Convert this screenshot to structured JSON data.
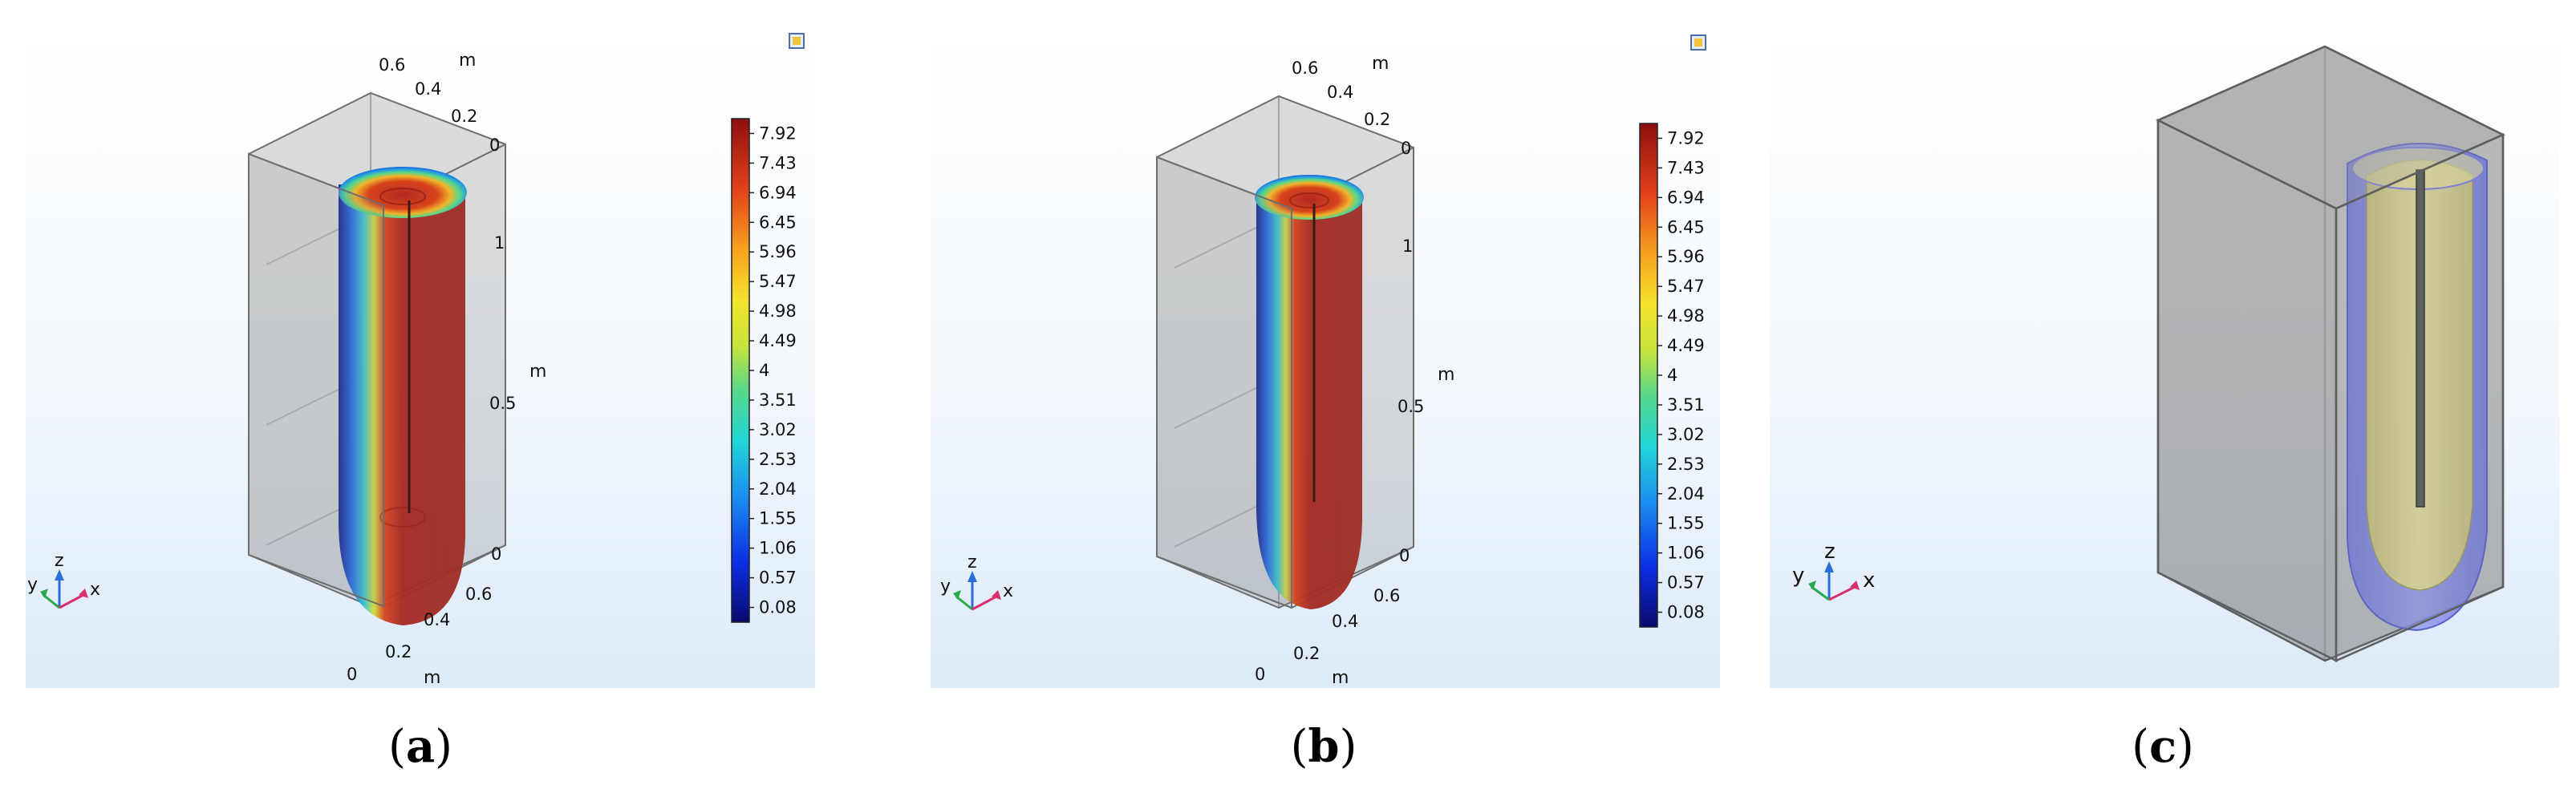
{
  "panels": [
    {
      "id": "a",
      "caption_label": "a",
      "axis_ticks": {
        "top_y": [
          "0.6",
          "0.4",
          "0.2",
          "0"
        ],
        "top_unit": "m",
        "z": [
          "1",
          "0.5",
          "0"
        ],
        "z_unit": "m",
        "bottom_right": [
          "0.4",
          "0.6"
        ],
        "bottom_x": [
          "0",
          "0.2"
        ],
        "bottom_unit": "m"
      },
      "colorbar_ticks": [
        "7.92",
        "7.43",
        "6.94",
        "6.45",
        "5.96",
        "5.47",
        "4.98",
        "4.49",
        "4",
        "3.51",
        "3.02",
        "2.53",
        "2.04",
        "1.55",
        "1.06",
        "0.57",
        "0.08"
      ],
      "triad": {
        "z": "z",
        "y": "y",
        "x": "x"
      }
    },
    {
      "id": "b",
      "caption_label": "b",
      "axis_ticks": {
        "top_y": [
          "0.6",
          "0.4",
          "0.2",
          "0"
        ],
        "top_unit": "m",
        "z": [
          "1",
          "0.5",
          "0"
        ],
        "z_unit": "m",
        "bottom_right": [
          "0.4",
          "0.6"
        ],
        "bottom_x": [
          "0",
          "0.2"
        ],
        "bottom_unit": "m"
      },
      "colorbar_ticks": [
        "7.92",
        "7.43",
        "6.94",
        "6.45",
        "5.96",
        "5.47",
        "4.98",
        "4.49",
        "4",
        "3.51",
        "3.02",
        "2.53",
        "2.04",
        "1.55",
        "1.06",
        "0.57",
        "0.08"
      ],
      "triad": {
        "z": "z",
        "y": "y",
        "x": "x"
      }
    },
    {
      "id": "c",
      "caption_label": "c",
      "triad": {
        "z": "z",
        "y": "y",
        "x": "x"
      }
    }
  ],
  "colors": {
    "background_top": "#ffffff",
    "background_bottom": "#dceafa",
    "box": "#808080",
    "field_hot": "#b0241c",
    "field_cold": "#1a1f8c",
    "sleeve_blue": "#7e86e8",
    "core_yellow": "#d8d487"
  }
}
